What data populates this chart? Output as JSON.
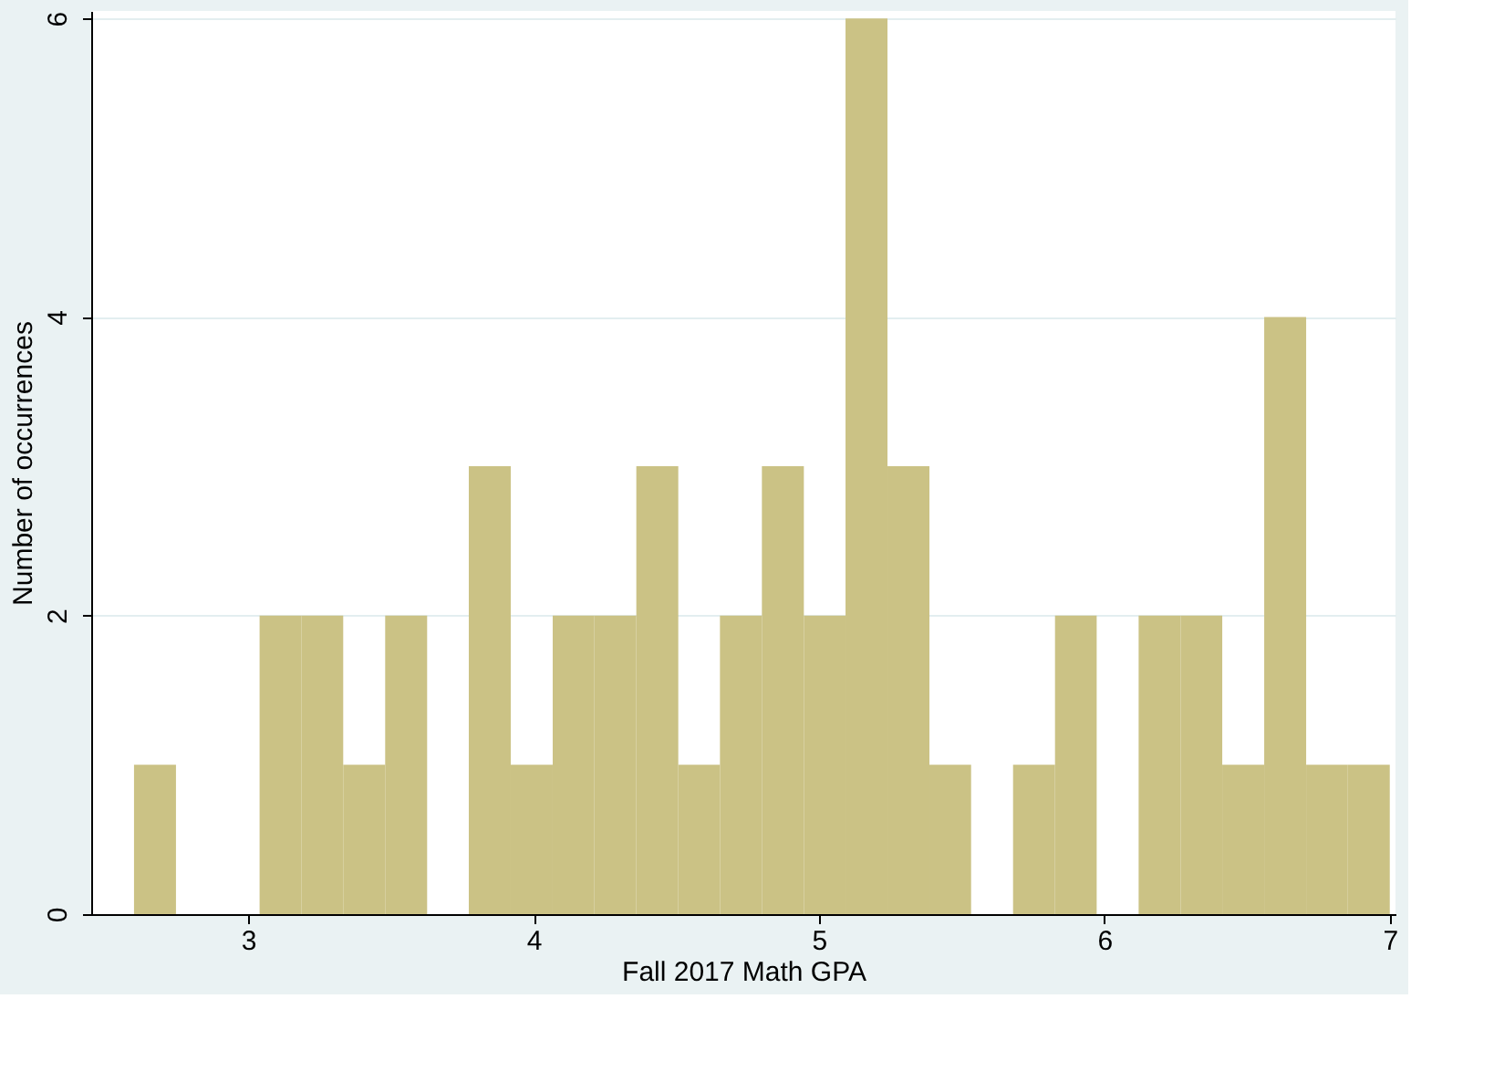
{
  "chart_data": {
    "type": "histogram",
    "xlabel": "Fall 2017 Math GPA",
    "ylabel": "Number of occurrences",
    "bins": [
      2.6,
      2.747,
      2.893,
      3.04,
      3.187,
      3.333,
      3.48,
      3.627,
      3.773,
      3.92,
      4.067,
      4.213,
      4.36,
      4.507,
      4.653,
      4.8,
      4.947,
      5.093,
      5.24,
      5.387,
      5.533,
      5.68,
      5.827,
      5.973,
      6.12,
      6.267,
      6.413,
      6.56,
      6.707,
      6.853,
      7.0
    ],
    "values": [
      1,
      0,
      0,
      2,
      2,
      1,
      2,
      0,
      3,
      1,
      2,
      2,
      3,
      1,
      2,
      3,
      2,
      6,
      3,
      1,
      0,
      1,
      2,
      0,
      2,
      2,
      1,
      4,
      1,
      1
    ],
    "color": "#cbc285",
    "xlim": [
      2.45,
      7.02
    ],
    "ylim": [
      0,
      6.05
    ],
    "xticks": [
      3,
      4,
      5,
      6,
      7
    ],
    "yticks": [
      0,
      2,
      4,
      6
    ],
    "grid": "y"
  }
}
